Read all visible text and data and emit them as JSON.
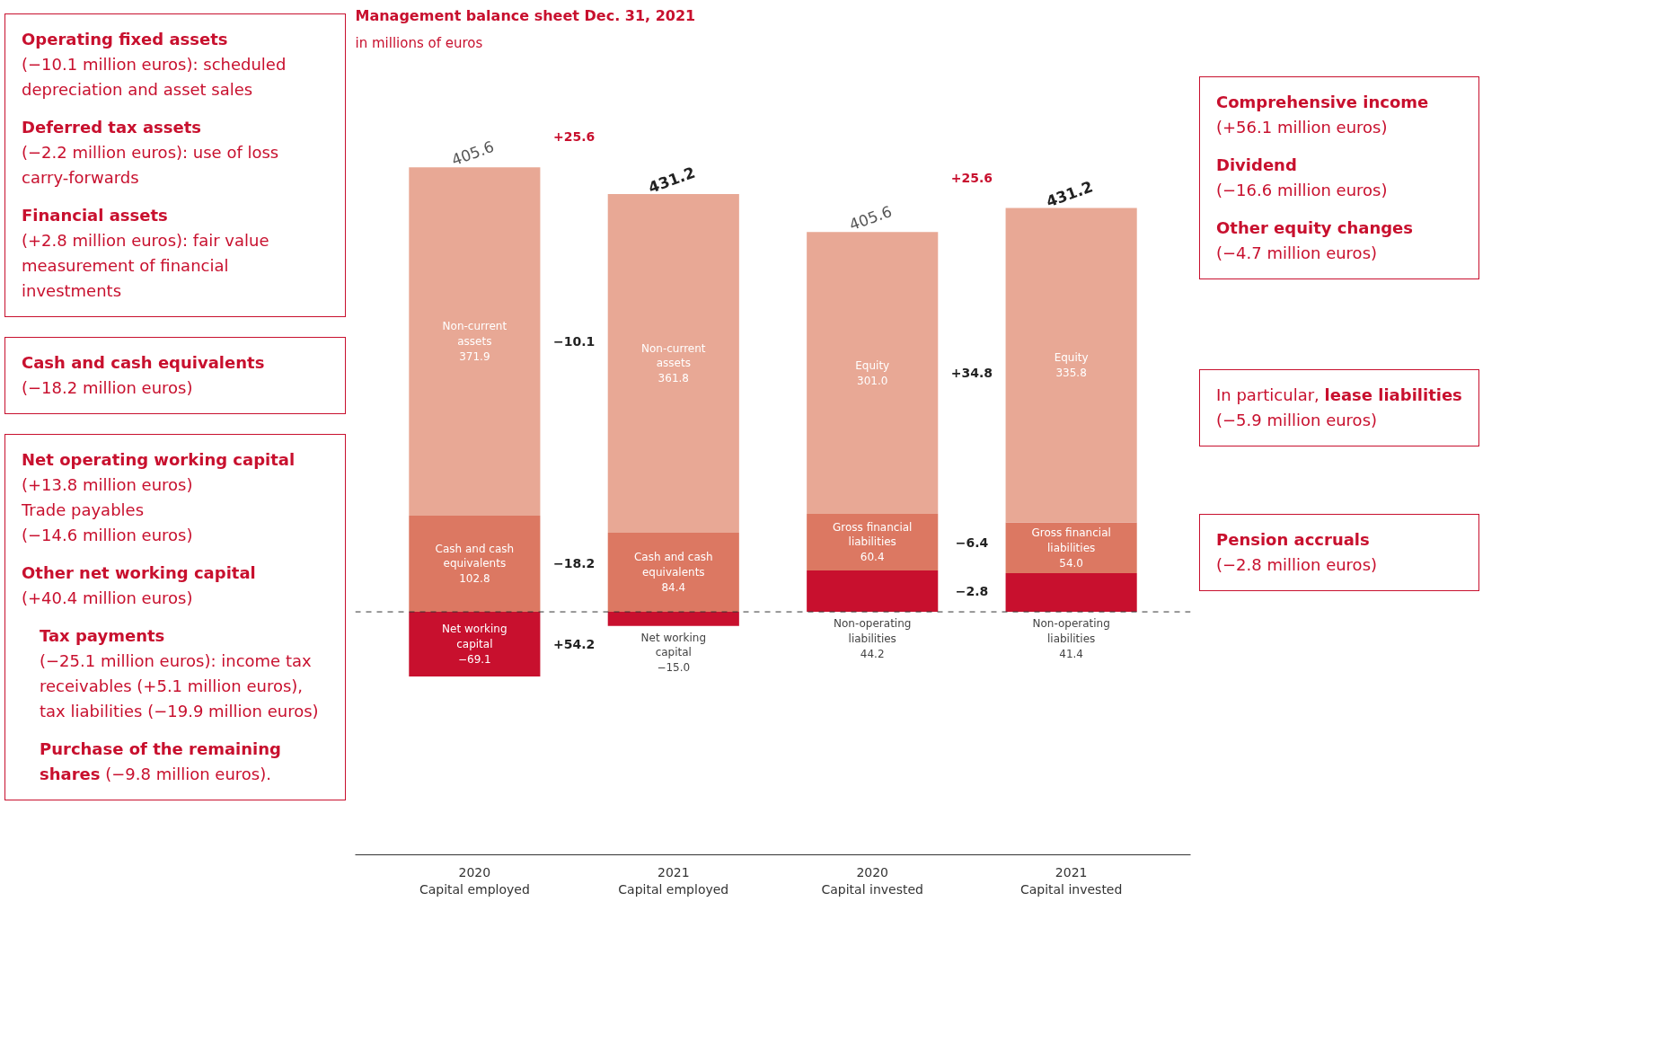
{
  "chart_data": {
    "type": "bar",
    "title": "Management balance sheet Dec. 31, 2021",
    "subtitle": "in millions of euros",
    "categories": [
      "2020\nCapital employed",
      "2021\nCapital employed",
      "2020\nCapital invested",
      "2021\nCapital invested"
    ],
    "stacked": true,
    "series": [
      {
        "color": "#c8102e",
        "values": [
          -69.1,
          -15.0,
          44.2,
          41.4
        ],
        "value_labels": [
          "Net working\ncapital\n−69.1",
          "Net working\ncapital\n−15.0",
          "Non-operating\nliabilities\n44.2",
          "Non-operating\nliabilities\n41.4"
        ]
      },
      {
        "color": "#dc7862",
        "values": [
          102.8,
          84.4,
          60.4,
          54.0
        ],
        "value_labels": [
          "Cash and cash\nequivalents\n102.8",
          "Cash and cash\nequivalents\n84.4",
          "Gross financial\nliabilities\n60.4",
          "Gross financial\nliabilities\n54.0"
        ]
      },
      {
        "color": "#e8a895",
        "values": [
          371.9,
          361.8,
          301.0,
          335.8
        ],
        "value_labels": [
          "Non-current\nassets\n371.9",
          "Non-current\nassets\n361.8",
          "Equity\n301.0",
          "Equity\n335.8"
        ]
      }
    ],
    "totals": [
      "405.6",
      "431.2",
      "405.6",
      "431.2"
    ],
    "ref_lines": [
      {
        "axis": "y",
        "value": 0,
        "line_style": "dashed",
        "color": "#333333"
      }
    ],
    "annotations": [
      "Operating fixed assets",
      "(−10.1 million euros): scheduled depreciation and asset sales",
      "Deferred tax assets",
      "(−2.2 million euros): use of loss carry-forwards",
      "Financial assets",
      "(+2.8 million euros): fair value measurement of financial investments",
      "Cash and cash equivalents",
      "(−18.2 million euros)",
      "Net operating working capital",
      "(+13.8 million euros)",
      "Trade payables",
      "(−14.6 million euros)",
      "Other net working capital",
      "(+40.4 million euros)",
      "Tax payments",
      "(−25.1 million euros): income tax receivables (+5.1 million euros), tax liabilities (−19.9 million euros)",
      "Purchase of the remaining shares",
      "(−9.8 million euros).",
      "Comprehensive income",
      "(+56.1 million euros)",
      "Dividend",
      "(−16.6 million euros)",
      "Other equity changes",
      "(−4.7 million euros)",
      "In particular,",
      "lease liabilities",
      "(−5.9 million euros)",
      "Pension accruals",
      "(−2.8 million euros)",
      "+25.6",
      "−10.1",
      "−18.2",
      "+54.2",
      "+25.6",
      "+34.8",
      "−6.4",
      "−2.8"
    ]
  }
}
